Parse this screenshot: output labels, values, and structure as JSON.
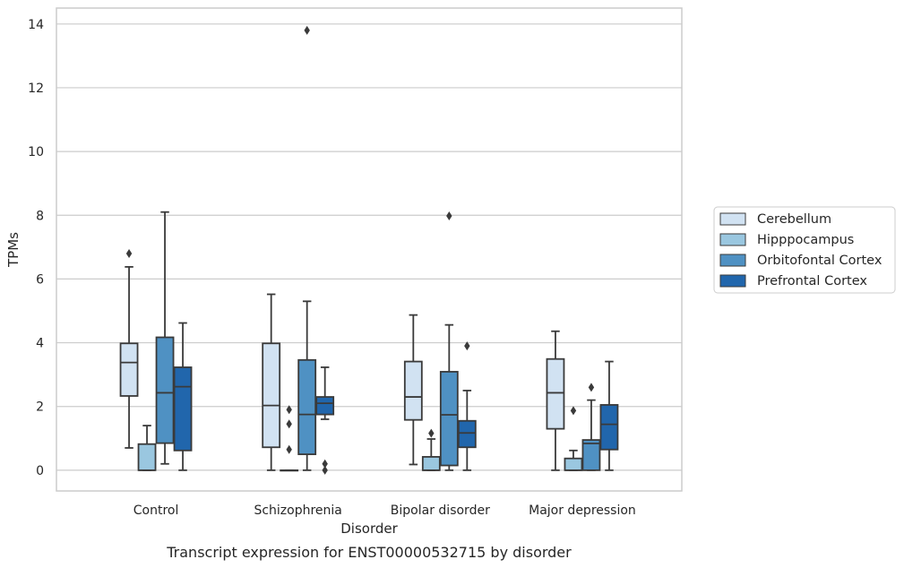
{
  "chart_data": {
    "type": "box",
    "caption": "Transcript expression for ENST00000532715 by disorder",
    "xlabel": "Disorder",
    "ylabel": "TPMs",
    "ylim": [
      -0.65,
      14.5
    ],
    "yticks": [
      0,
      2,
      4,
      6,
      8,
      10,
      12,
      14
    ],
    "grid": "horizontal",
    "legend_position": "right",
    "categories": [
      "Control",
      "Schizophrenia",
      "Bipolar disorder",
      "Major depression"
    ],
    "series": [
      {
        "name": "Cerebellum",
        "color": "#d1e2f2",
        "boxes": [
          {
            "whislo": 0.7,
            "q1": 2.33,
            "med": 3.38,
            "q3": 3.98,
            "whishi": 6.38,
            "fliers": [
              6.8
            ]
          },
          {
            "whislo": 0.0,
            "q1": 0.72,
            "med": 2.03,
            "q3": 3.98,
            "whishi": 5.52,
            "fliers": []
          },
          {
            "whislo": 0.18,
            "q1": 1.58,
            "med": 2.3,
            "q3": 3.41,
            "whishi": 4.87,
            "fliers": []
          },
          {
            "whislo": 0.0,
            "q1": 1.3,
            "med": 2.43,
            "q3": 3.49,
            "whishi": 4.36,
            "fliers": []
          }
        ]
      },
      {
        "name": "Hipppocampus",
        "color": "#9ac7e0",
        "boxes": [
          {
            "whislo": 0.0,
            "q1": 0.0,
            "med": 0.0,
            "q3": 0.82,
            "whishi": 1.4,
            "fliers": []
          },
          {
            "whislo": 0.0,
            "q1": 0.0,
            "med": 0.0,
            "q3": 0.0,
            "whishi": 0.0,
            "fliers": [
              1.9,
              1.45,
              0.65
            ]
          },
          {
            "whislo": 0.0,
            "q1": 0.0,
            "med": 0.0,
            "q3": 0.42,
            "whishi": 0.98,
            "fliers": [
              1.16
            ]
          },
          {
            "whislo": 0.0,
            "q1": 0.0,
            "med": 0.0,
            "q3": 0.37,
            "whishi": 0.62,
            "fliers": [
              1.87
            ]
          }
        ]
      },
      {
        "name": "Orbitofontal Cortex",
        "color": "#4f91c3",
        "boxes": [
          {
            "whislo": 0.2,
            "q1": 0.85,
            "med": 2.43,
            "q3": 4.17,
            "whishi": 8.1,
            "fliers": []
          },
          {
            "whislo": 0.0,
            "q1": 0.5,
            "med": 1.75,
            "q3": 3.46,
            "whishi": 5.3,
            "fliers": [
              13.8
            ]
          },
          {
            "whislo": 0.0,
            "q1": 0.15,
            "med": 1.74,
            "q3": 3.09,
            "whishi": 4.56,
            "fliers": [
              7.98
            ]
          },
          {
            "whislo": 0.0,
            "q1": 0.0,
            "med": 0.84,
            "q3": 0.95,
            "whishi": 2.2,
            "fliers": [
              2.6
            ]
          }
        ]
      },
      {
        "name": "Prefrontal Cortex",
        "color": "#2166ac",
        "boxes": [
          {
            "whislo": 0.0,
            "q1": 0.62,
            "med": 2.62,
            "q3": 3.23,
            "whishi": 4.62,
            "fliers": []
          },
          {
            "whislo": 1.6,
            "q1": 1.75,
            "med": 2.1,
            "q3": 2.3,
            "whishi": 3.23,
            "fliers": [
              0.2,
              0.0
            ]
          },
          {
            "whislo": 0.0,
            "q1": 0.72,
            "med": 1.17,
            "q3": 1.55,
            "whishi": 2.5,
            "fliers": [
              3.9
            ]
          },
          {
            "whislo": 0.0,
            "q1": 0.65,
            "med": 1.44,
            "q3": 2.05,
            "whishi": 3.41,
            "fliers": []
          }
        ]
      }
    ]
  }
}
